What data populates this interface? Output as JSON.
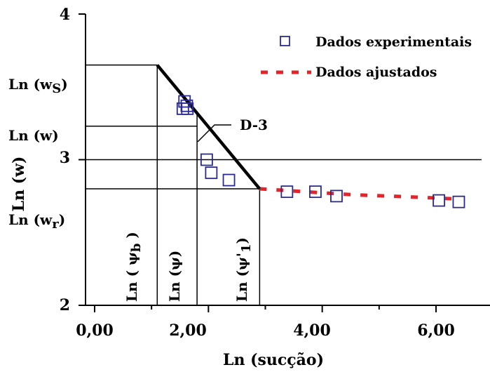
{
  "chart_data": {
    "type": "scatter",
    "xlabel": "Ln (sucção)",
    "ylabel": "Ln (w)",
    "xlim": [
      -0.6,
      6.8
    ],
    "ylim": [
      2,
      4
    ],
    "log_scale": false,
    "grid": false,
    "legend_position": "top-right",
    "x_ticks": [
      "0,00",
      "2,00",
      "4,00",
      "6,00"
    ],
    "y_ticks": [
      "2",
      "3",
      "4"
    ],
    "series": [
      {
        "name": "Dados experimentais",
        "marker": "square-open",
        "color": "#1f1f8f",
        "points": [
          [
            1.58,
            3.4
          ],
          [
            1.62,
            3.37
          ],
          [
            1.55,
            3.35
          ],
          [
            1.63,
            3.35
          ],
          [
            1.97,
            3.0
          ],
          [
            2.05,
            2.91
          ],
          [
            2.36,
            2.86
          ],
          [
            3.38,
            2.78
          ],
          [
            3.88,
            2.78
          ],
          [
            4.25,
            2.75
          ],
          [
            6.05,
            2.72
          ],
          [
            6.4,
            2.71
          ]
        ]
      },
      {
        "name": "Dados ajustados",
        "line_style": "dashed",
        "color": "#e0262a",
        "points": [
          [
            2.9,
            2.8
          ],
          [
            3.5,
            2.785
          ],
          [
            4.5,
            2.76
          ],
          [
            5.5,
            2.745
          ],
          [
            6.4,
            2.73
          ]
        ]
      },
      {
        "label": "D-3",
        "line_style": "solid",
        "color": "#000000",
        "points": [
          [
            1.1,
            3.65
          ],
          [
            2.9,
            2.8
          ]
        ]
      }
    ],
    "reference_lines": {
      "horizontal": [
        {
          "label": "Ln (w_S)",
          "y": 3.65,
          "x_end": 1.1
        },
        {
          "label": "Ln (w)",
          "y": 3.23,
          "x_end": 1.8
        },
        {
          "label": "3",
          "y": 3.0,
          "x_end": 6.8
        },
        {
          "label": "Ln (w_r)",
          "y": 2.8,
          "x_end": 2.9
        }
      ],
      "vertical": [
        {
          "label": "Ln ( ψ_b )",
          "x": 1.1
        },
        {
          "label": "Ln (ψ)",
          "x": 1.8
        },
        {
          "label": "Ln (ψ'_1)",
          "x": 2.9
        }
      ]
    },
    "annotations": {
      "y_ws": {
        "base": "Ln (w",
        "sub": "S",
        "close": ")"
      },
      "y_w": "Ln (w)",
      "y_wr": {
        "base": "Ln (w",
        "sub": "r",
        "close": ")"
      },
      "x_psib": {
        "base": "Ln ( ψ",
        "sub": "b",
        "close": " )"
      },
      "x_psi": "Ln (ψ)",
      "x_psi1": {
        "base": "Ln (ψ'",
        "sub": "1",
        "close": ")"
      },
      "curve_label": "D-3"
    },
    "legend": [
      {
        "label": "Dados experimentais"
      },
      {
        "label": "Dados ajustados"
      }
    ]
  }
}
